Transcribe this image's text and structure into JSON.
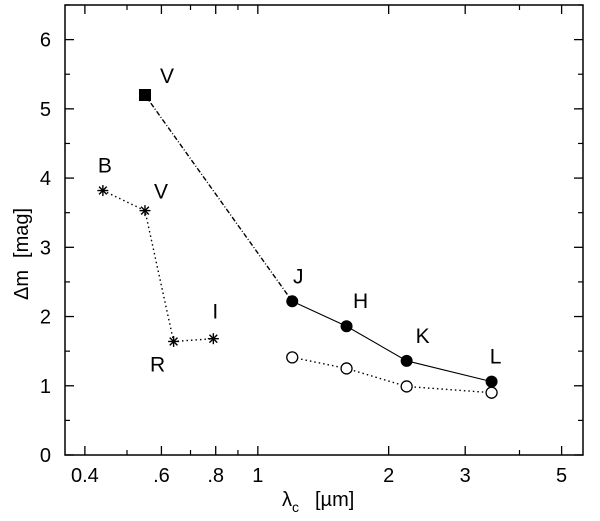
{
  "chart_data": {
    "type": "scatter",
    "title": "",
    "xlabel": {
      "symbol": "λ",
      "sub": "c",
      "unit": "[µm]"
    },
    "ylabel": {
      "symbol": "Δm",
      "unit": "[mag]"
    },
    "xscale": "log",
    "xlim": [
      0.36,
      5.6
    ],
    "ylim": [
      0,
      6.5
    ],
    "x_ticks": [
      {
        "value": 0.4,
        "label": "0.4"
      },
      {
        "value": 0.6,
        "label": ".6"
      },
      {
        "value": 0.8,
        "label": ".8"
      },
      {
        "value": 1,
        "label": "1"
      },
      {
        "value": 2,
        "label": "2"
      },
      {
        "value": 3,
        "label": "3"
      },
      {
        "value": 5,
        "label": "5"
      }
    ],
    "x_minor_ticks": [
      0.5,
      0.7,
      0.9,
      4
    ],
    "y_ticks": [
      0,
      1,
      2,
      3,
      4,
      5,
      6
    ],
    "y_minor_ticks": [
      0.5,
      1.5,
      2.5,
      3.5,
      4.5,
      5.5,
      6.5
    ],
    "grid": false,
    "legend": "none",
    "series": [
      {
        "marker": "square-filled",
        "line": "dash-dot",
        "points": [
          {
            "x": 0.55,
            "y": 5.2,
            "label": "V"
          }
        ],
        "connect_to": {
          "x": 1.2,
          "y": 2.22
        }
      },
      {
        "marker": "circle-filled",
        "line": "solid",
        "points": [
          {
            "x": 1.2,
            "y": 2.22,
            "label": "J"
          },
          {
            "x": 1.6,
            "y": 1.86,
            "label": "H"
          },
          {
            "x": 2.2,
            "y": 1.36,
            "label": "K"
          },
          {
            "x": 3.45,
            "y": 1.06,
            "label": "L"
          }
        ]
      },
      {
        "marker": "circle-open",
        "line": "dotted",
        "points": [
          {
            "x": 1.2,
            "y": 1.41
          },
          {
            "x": 1.6,
            "y": 1.25
          },
          {
            "x": 2.2,
            "y": 0.99
          },
          {
            "x": 3.45,
            "y": 0.9
          }
        ]
      },
      {
        "marker": "asterisk",
        "line": "dotted",
        "points": [
          {
            "x": 0.44,
            "y": 3.82,
            "label": "B"
          },
          {
            "x": 0.55,
            "y": 3.53,
            "label": "V"
          },
          {
            "x": 0.64,
            "y": 1.64,
            "label": "R"
          },
          {
            "x": 0.79,
            "y": 1.68,
            "label": "I"
          }
        ]
      }
    ]
  }
}
